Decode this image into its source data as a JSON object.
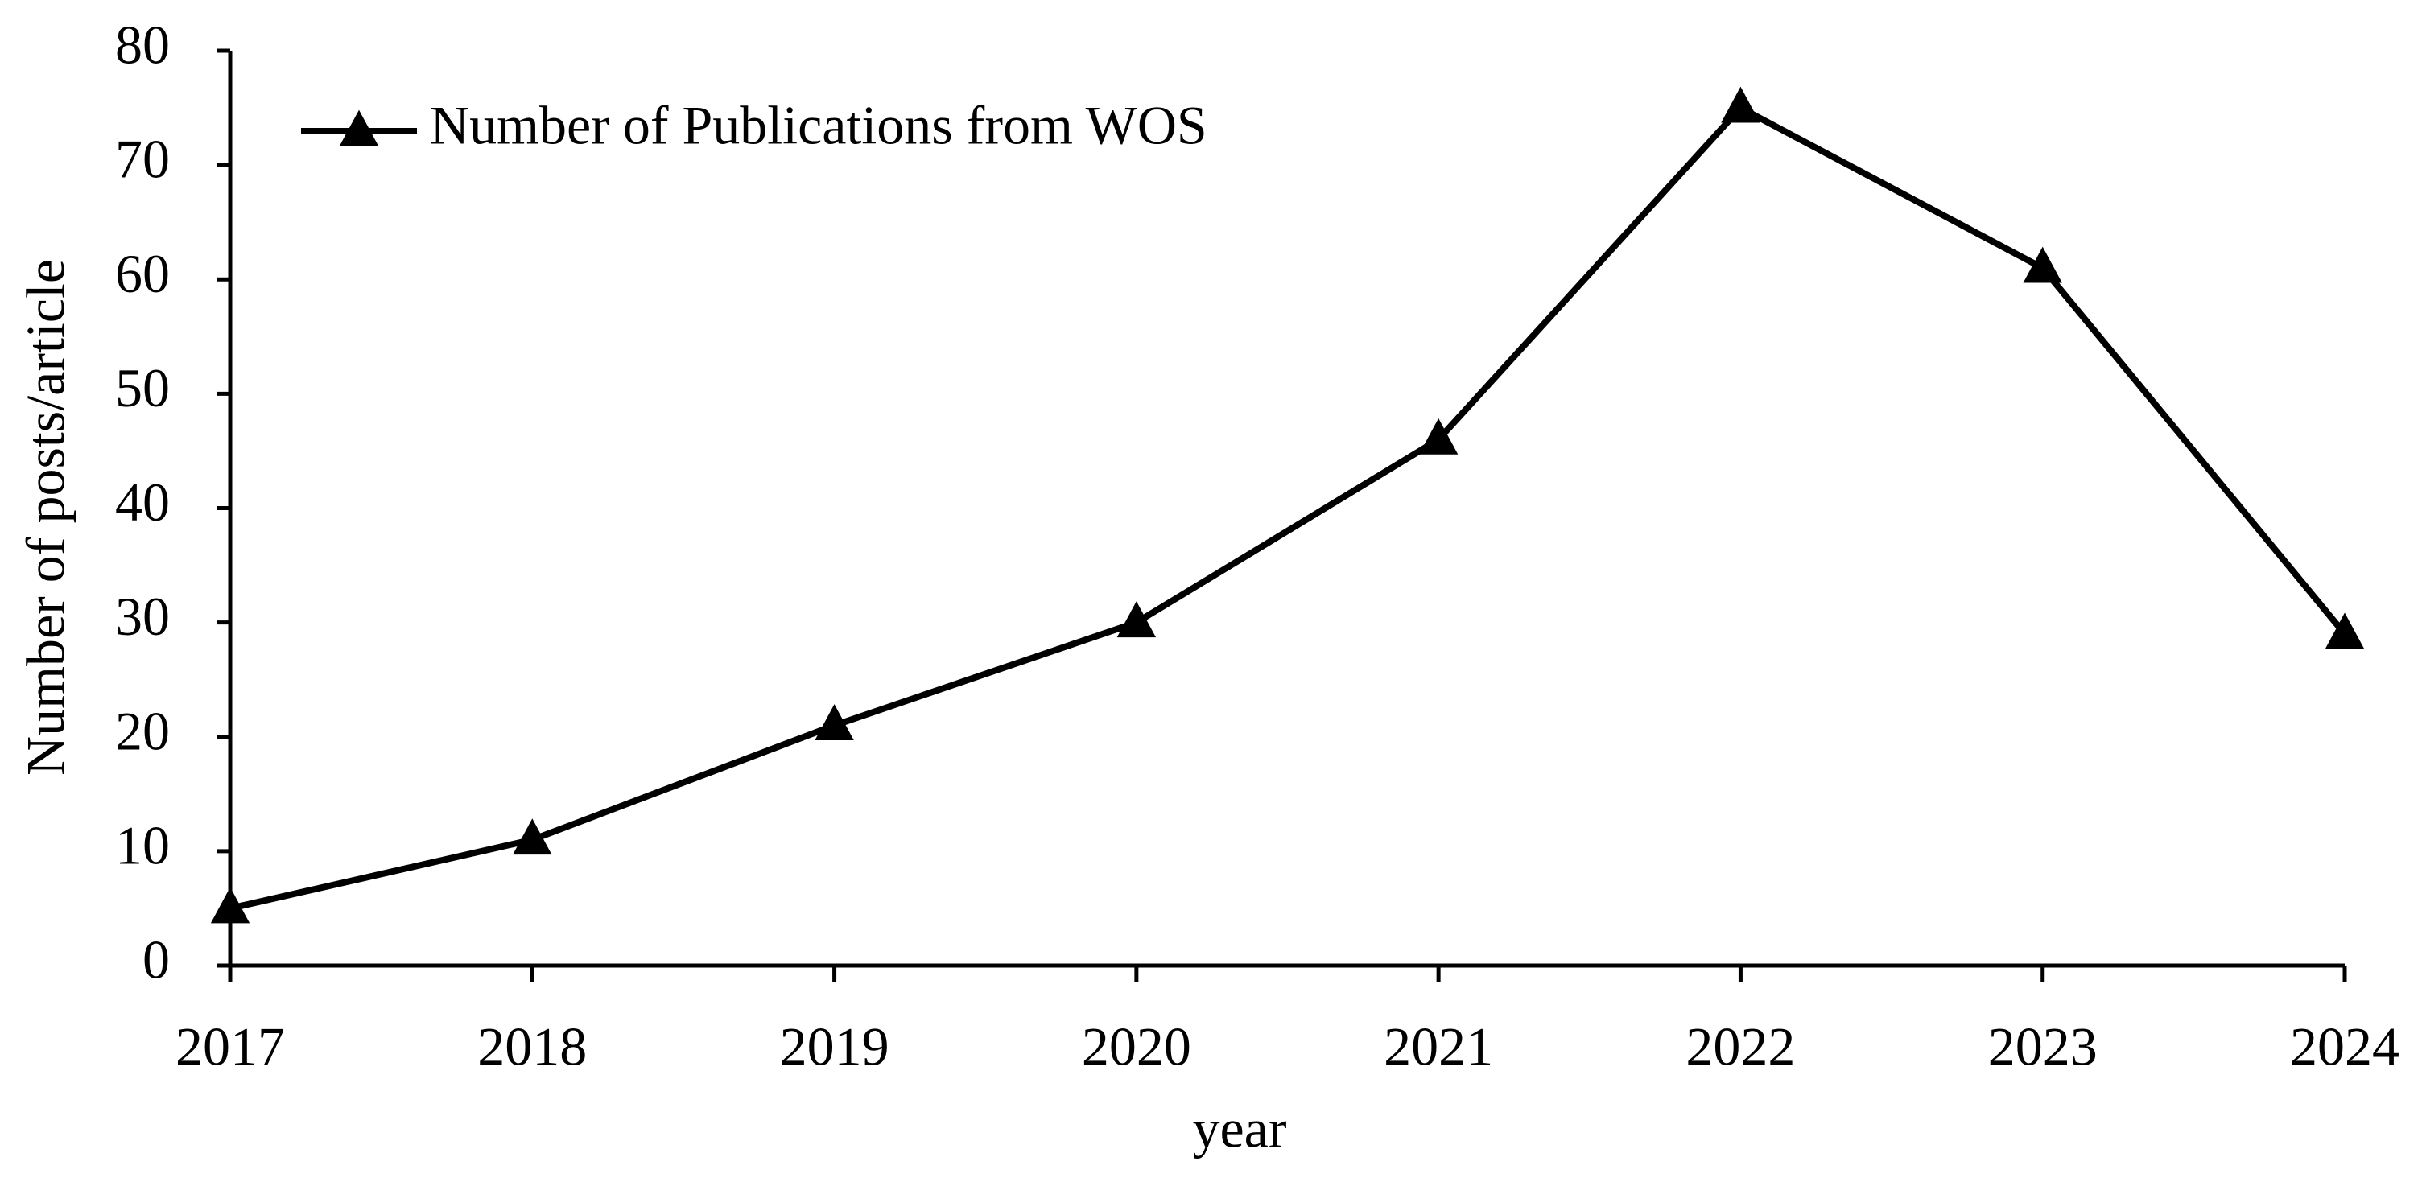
{
  "chart_data": {
    "type": "line",
    "x_label": "year",
    "y_label": "Number of posts/article",
    "x": [
      2017,
      2018,
      2019,
      2020,
      2021,
      2022,
      2023,
      2024
    ],
    "series": [
      {
        "name": "Number of Publications from WOS",
        "color": "#000000",
        "marker": "triangle",
        "values": [
          5,
          11,
          21,
          30,
          46,
          75,
          61,
          29
        ]
      }
    ],
    "xlim": [
      2017,
      2024
    ],
    "xticks": [
      2017,
      2018,
      2019,
      2020,
      2021,
      2022,
      2023,
      2024
    ],
    "ylim": [
      0,
      80
    ],
    "yticks": [
      0,
      10,
      20,
      30,
      40,
      50,
      60,
      70,
      80
    ],
    "grid": false,
    "legend": "upper left"
  }
}
